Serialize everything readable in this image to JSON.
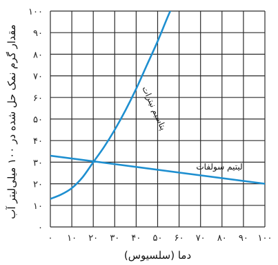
{
  "chart_data": {
    "type": "line",
    "xlabel": "دما (سلسیوس)",
    "ylabel": "مقدار گرم نمک حل شده در ۱۰۰ میلی‌لیتر آب",
    "x_ticks": [
      "۰",
      "۱۰",
      "۲۰",
      "۳۰",
      "۴۰",
      "۵۰",
      "۶۰",
      "۷۰",
      "۸۰",
      "۹۰",
      "۱۰۰"
    ],
    "y_ticks": [
      "۰",
      "۱۰",
      "۲۰",
      "۳۰",
      "۴۰",
      "۵۰",
      "۶۰",
      "۷۰",
      "۸۰",
      "۹۰",
      "۱۰۰"
    ],
    "xlim": [
      0,
      100
    ],
    "ylim": [
      0,
      100
    ],
    "grid": true,
    "series": [
      {
        "name": "پتاسیم نیترات",
        "color": "#1e8fd0",
        "x": [
          0,
          5,
          10,
          15,
          20,
          25,
          30,
          35,
          40,
          45,
          50,
          55,
          60
        ],
        "y": [
          13,
          15,
          18,
          23,
          30,
          37,
          45,
          54,
          64,
          75,
          86,
          98,
          109
        ]
      },
      {
        "name": "لیتیم سولفات",
        "color": "#1e8fd0",
        "x": [
          0,
          100
        ],
        "y": [
          33,
          20
        ]
      }
    ]
  }
}
